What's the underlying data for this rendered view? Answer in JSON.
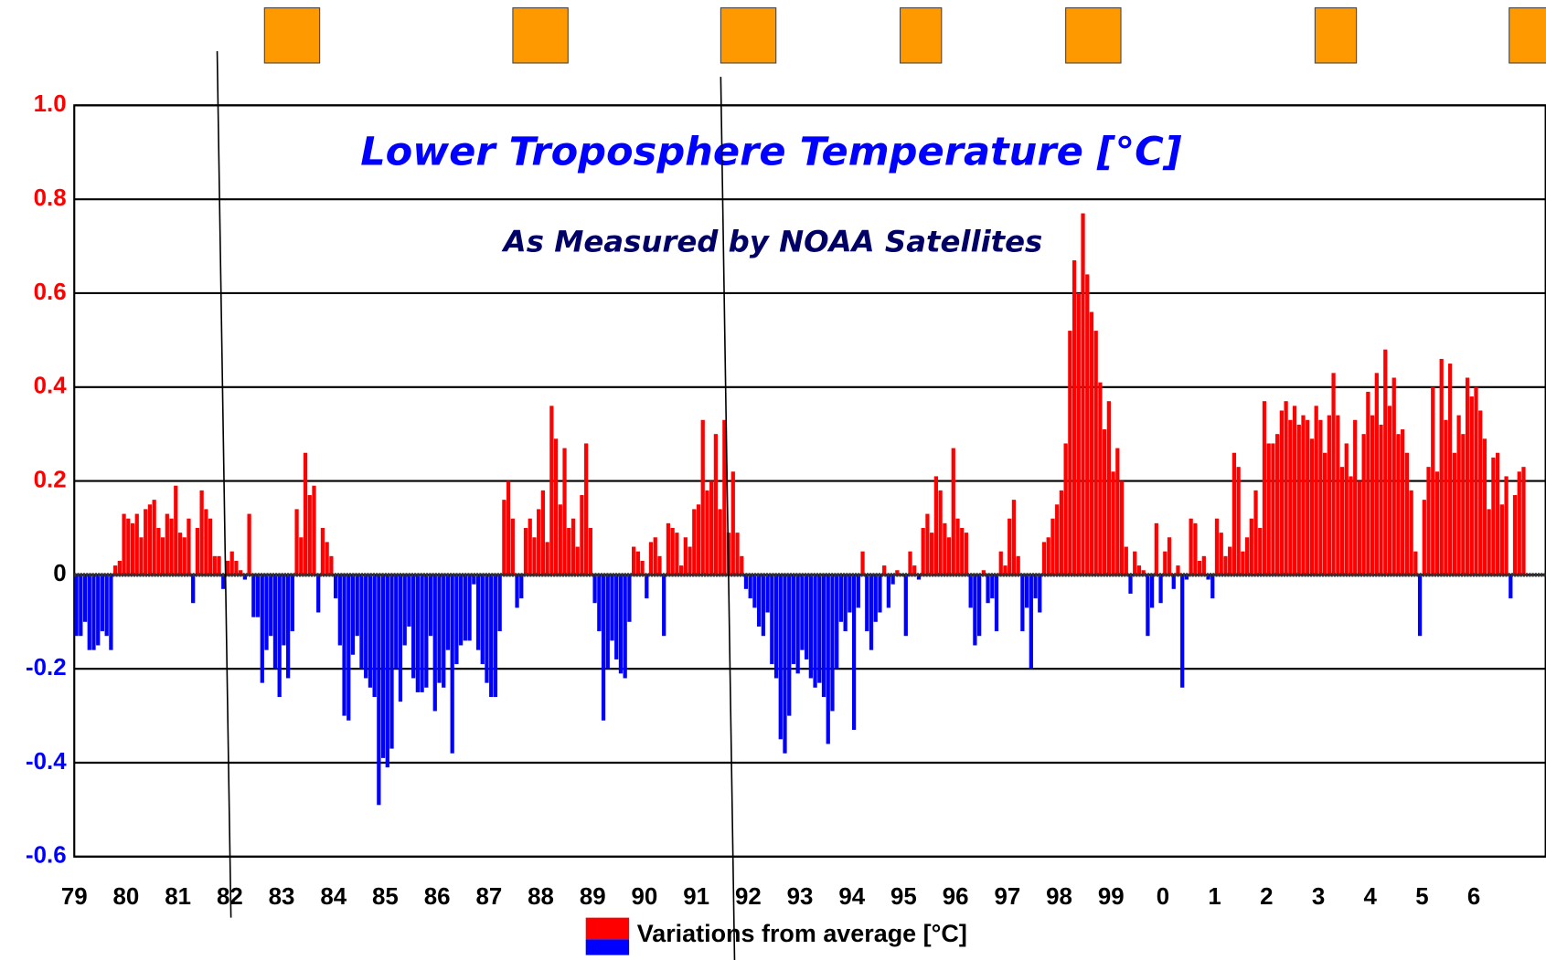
{
  "chart_data": {
    "type": "bar",
    "title": "Lower Troposphere Temperature [°C]",
    "subtitle": "As Measured by NOAA Satellites",
    "legend": "Variations from average [°C]",
    "positive_color": "#ff0000",
    "negative_color": "#0000ff",
    "ylim": [
      -0.6,
      1.0
    ],
    "yticks": [
      -0.6,
      -0.4,
      -0.2,
      0,
      0.2,
      0.4,
      0.6,
      0.8,
      {
        "value": 1,
        "label": "1.0"
      }
    ],
    "grid": true,
    "categories": [
      "79",
      null,
      null,
      null,
      null,
      null,
      null,
      null,
      null,
      null,
      null,
      null,
      "80",
      null,
      null,
      null,
      null,
      null,
      null,
      null,
      null,
      null,
      null,
      null,
      "81",
      null,
      null,
      null,
      null,
      null,
      null,
      null,
      null,
      null,
      null,
      null,
      "82",
      null,
      null,
      null,
      null,
      null,
      null,
      null,
      null,
      null,
      null,
      null,
      "83",
      null,
      null,
      null,
      null,
      null,
      null,
      null,
      null,
      null,
      null,
      null,
      "84",
      null,
      null,
      null,
      null,
      null,
      null,
      null,
      null,
      null,
      null,
      null,
      "85",
      null,
      null,
      null,
      null,
      null,
      null,
      null,
      null,
      null,
      null,
      null,
      "86",
      null,
      null,
      null,
      null,
      null,
      null,
      null,
      null,
      null,
      null,
      null,
      "87",
      null,
      null,
      null,
      null,
      null,
      null,
      null,
      null,
      null,
      null,
      null,
      "88",
      null,
      null,
      null,
      null,
      null,
      null,
      null,
      null,
      null,
      null,
      null,
      "89",
      null,
      null,
      null,
      null,
      null,
      null,
      null,
      null,
      null,
      null,
      null,
      "90",
      null,
      null,
      null,
      null,
      null,
      null,
      null,
      null,
      null,
      null,
      null,
      "91",
      null,
      null,
      null,
      null,
      null,
      null,
      null,
      null,
      null,
      null,
      null,
      "92",
      null,
      null,
      null,
      null,
      null,
      null,
      null,
      null,
      null,
      null,
      null,
      "93",
      null,
      null,
      null,
      null,
      null,
      null,
      null,
      null,
      null,
      null,
      null,
      "94",
      null,
      null,
      null,
      null,
      null,
      null,
      null,
      null,
      null,
      null,
      null,
      "95",
      null,
      null,
      null,
      null,
      null,
      null,
      null,
      null,
      null,
      null,
      null,
      "96",
      null,
      null,
      null,
      null,
      null,
      null,
      null,
      null,
      null,
      null,
      null,
      "97",
      null,
      null,
      null,
      null,
      null,
      null,
      null,
      null,
      null,
      null,
      null,
      "98",
      null,
      null,
      null,
      null,
      null,
      null,
      null,
      null,
      null,
      null,
      null,
      "99",
      null,
      null,
      null,
      null,
      null,
      null,
      null,
      null,
      null,
      null,
      null,
      "0",
      null,
      null,
      null,
      null,
      null,
      null,
      null,
      null,
      null,
      null,
      null,
      "1",
      null,
      null,
      null,
      null,
      null,
      null,
      null,
      null,
      null,
      null,
      null,
      "2",
      null,
      null,
      null,
      null,
      null,
      null,
      null,
      null,
      null,
      null,
      null,
      "3",
      null,
      null,
      null,
      null,
      null,
      null,
      null,
      null,
      null,
      null,
      null,
      "4",
      null,
      null,
      null,
      null,
      null,
      null,
      null,
      null,
      null,
      null,
      null,
      "5",
      null,
      null,
      null,
      null,
      null,
      null,
      null,
      null,
      null,
      null,
      null,
      "6",
      null,
      null,
      null,
      null,
      null,
      null,
      null,
      null,
      null,
      null,
      null
    ],
    "values": [
      -0.13,
      -0.13,
      -0.1,
      -0.16,
      -0.16,
      -0.15,
      -0.12,
      -0.13,
      -0.16,
      0.02,
      0.03,
      0.13,
      0.12,
      0.11,
      0.13,
      0.08,
      0.14,
      0.15,
      0.16,
      0.1,
      0.08,
      0.13,
      0.12,
      0.19,
      0.09,
      0.08,
      0.12,
      -0.06,
      0.1,
      0.18,
      0.14,
      0.12,
      0.04,
      0.04,
      -0.03,
      0.03,
      0.05,
      0.03,
      0.01,
      -0.01,
      0.13,
      -0.09,
      -0.09,
      -0.23,
      -0.16,
      -0.13,
      -0.2,
      -0.26,
      -0.15,
      -0.22,
      -0.12,
      0.14,
      0.08,
      0.26,
      0.17,
      0.19,
      -0.08,
      0.1,
      0.07,
      0.04,
      -0.05,
      -0.15,
      -0.3,
      -0.31,
      -0.17,
      -0.13,
      -0.2,
      -0.22,
      -0.24,
      -0.26,
      -0.49,
      -0.39,
      -0.41,
      -0.37,
      -0.2,
      -0.27,
      -0.15,
      -0.11,
      -0.22,
      -0.25,
      -0.25,
      -0.24,
      -0.13,
      -0.29,
      -0.23,
      -0.24,
      -0.16,
      -0.38,
      -0.19,
      -0.15,
      -0.14,
      -0.14,
      -0.02,
      -0.16,
      -0.19,
      -0.23,
      -0.26,
      -0.26,
      -0.12,
      0.16,
      0.2,
      0.12,
      -0.07,
      -0.05,
      0.1,
      0.12,
      0.08,
      0.14,
      0.18,
      0.07,
      0.36,
      0.29,
      0.15,
      0.27,
      0.1,
      0.12,
      0.06,
      0.17,
      0.28,
      0.1,
      -0.06,
      -0.12,
      -0.31,
      -0.2,
      -0.14,
      -0.18,
      -0.21,
      -0.22,
      -0.1,
      0.06,
      0.05,
      0.03,
      -0.05,
      0.07,
      0.08,
      0.04,
      -0.13,
      0.11,
      0.1,
      0.09,
      0.02,
      0.08,
      0.06,
      0.14,
      0.15,
      0.33,
      0.18,
      0.2,
      0.3,
      0.14,
      0.33,
      0.09,
      0.22,
      0.09,
      0.04,
      -0.03,
      -0.05,
      -0.07,
      -0.11,
      -0.13,
      -0.08,
      -0.19,
      -0.22,
      -0.35,
      -0.38,
      -0.3,
      -0.19,
      -0.21,
      -0.16,
      -0.18,
      -0.22,
      -0.24,
      -0.23,
      -0.26,
      -0.36,
      -0.29,
      -0.2,
      -0.1,
      -0.12,
      -0.08,
      -0.33,
      -0.07,
      0.05,
      -0.12,
      -0.16,
      -0.1,
      -0.08,
      0.02,
      -0.07,
      -0.02,
      0.01,
      0.0,
      -0.13,
      0.05,
      0.02,
      -0.01,
      0.1,
      0.13,
      0.09,
      0.21,
      0.18,
      0.11,
      0.08,
      0.27,
      0.12,
      0.1,
      0.09,
      -0.07,
      -0.15,
      -0.13,
      0.01,
      -0.06,
      -0.05,
      -0.12,
      0.05,
      0.02,
      0.12,
      0.16,
      0.04,
      -0.12,
      -0.07,
      -0.2,
      -0.05,
      -0.08,
      0.07,
      0.08,
      0.12,
      0.15,
      0.18,
      0.28,
      0.52,
      0.67,
      0.6,
      0.77,
      0.64,
      0.56,
      0.52,
      0.41,
      0.31,
      0.37,
      0.22,
      0.27,
      0.2,
      0.06,
      -0.04,
      0.05,
      0.02,
      0.01,
      -0.13,
      -0.07,
      0.11,
      -0.06,
      0.05,
      0.08,
      -0.03,
      0.02,
      -0.24,
      -0.01,
      0.12,
      0.11,
      0.03,
      0.04,
      -0.01,
      -0.05,
      0.12,
      0.09,
      0.04,
      0.06,
      0.26,
      0.23,
      0.05,
      0.08,
      0.12,
      0.18,
      0.1,
      0.37,
      0.28,
      0.28,
      0.3,
      0.35,
      0.37,
      0.33,
      0.36,
      0.32,
      0.34,
      0.33,
      0.29,
      0.36,
      0.33,
      0.26,
      0.34,
      0.43,
      0.34,
      0.23,
      0.28,
      0.21,
      0.33,
      0.2,
      0.3,
      0.39,
      0.34,
      0.43,
      0.32,
      0.48,
      0.36,
      0.42,
      0.3,
      0.31,
      0.26,
      0.18,
      0.05,
      -0.13,
      0.16,
      0.23,
      0.4,
      0.22,
      0.46,
      0.33,
      0.45,
      0.26,
      0.34,
      0.3,
      0.42,
      0.38,
      0.4,
      0.35,
      0.29,
      0.14,
      0.25,
      0.26,
      0.15,
      0.21,
      -0.05,
      0.17,
      0.22,
      0.23
    ]
  }
}
